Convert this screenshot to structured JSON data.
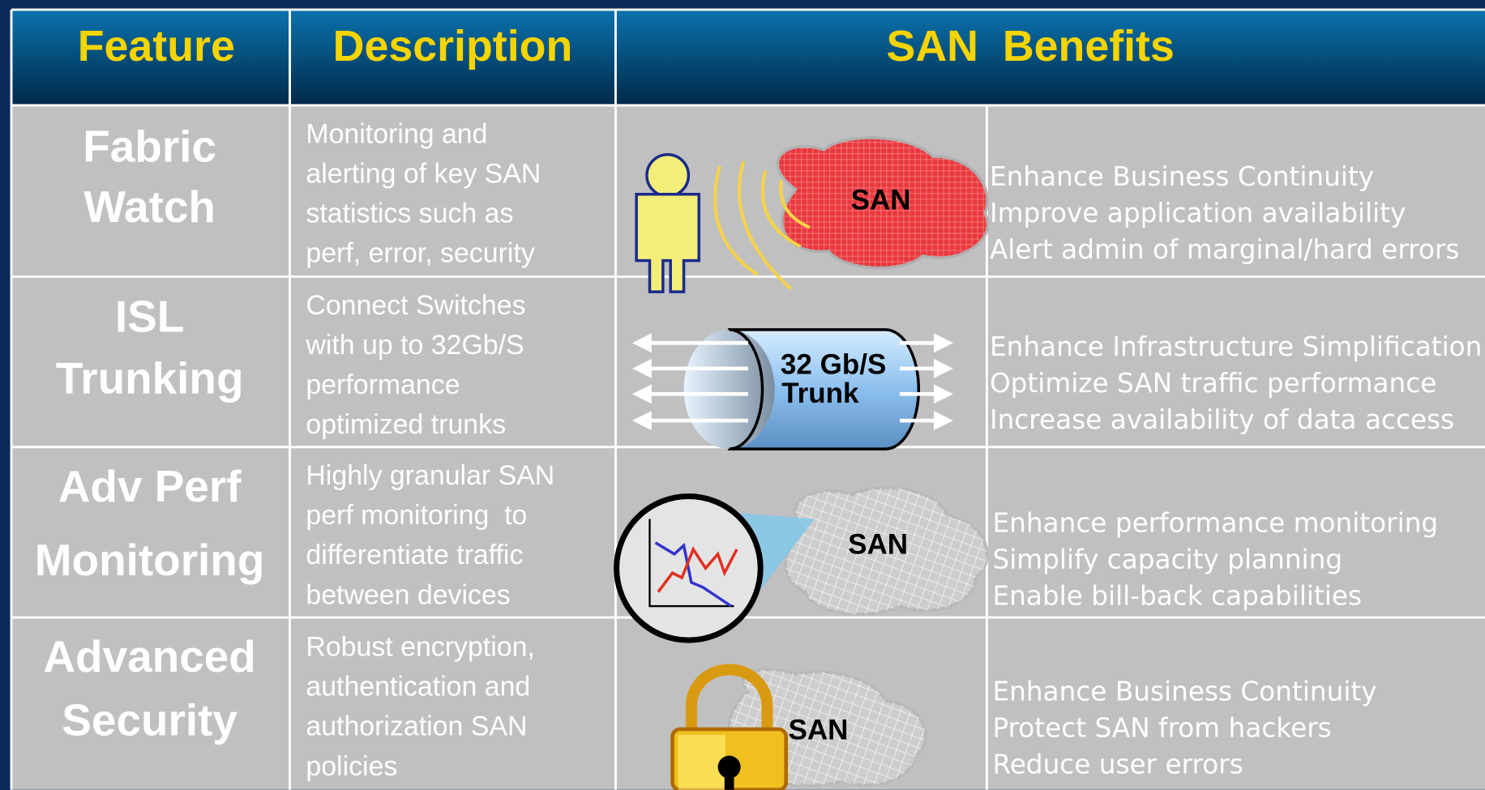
{
  "header": {
    "columns": [
      "Feature",
      "Description",
      "SAN  Benefits"
    ]
  },
  "rows": [
    {
      "feature": [
        "Fabric",
        "Watch"
      ],
      "description": [
        "Monitoring and",
        "alerting of key SAN",
        "statistics such as",
        "perf, error, security"
      ],
      "graphic_label": [
        "SAN"
      ],
      "benefits": [
        "Enhance Business Continuity",
        "Improve application availability",
        "Alert admin of marginal/hard errors"
      ]
    },
    {
      "feature": [
        "ISL",
        "Trunking"
      ],
      "description": [
        "Connect Switches",
        "with up to 32Gb/S",
        "performance",
        "optimized trunks"
      ],
      "graphic_label": [
        "32 Gb/S",
        "Trunk"
      ],
      "benefits": [
        "Enhance Infrastructure Simplification",
        "Optimize SAN traffic performance",
        "Increase availability of data access"
      ]
    },
    {
      "feature": [
        "Adv Perf",
        "Monitoring"
      ],
      "description": [
        "Highly granular SAN",
        "perf monitoring  to",
        "differentiate traffic",
        "between devices"
      ],
      "graphic_label": [
        "SAN"
      ],
      "benefits": [
        "Enhance performance monitoring",
        "Simplify capacity planning",
        "Enable bill-back capabilities"
      ]
    },
    {
      "feature": [
        "Advanced",
        "Security"
      ],
      "description": [
        "Robust encryption,",
        "authentication and",
        "authorization SAN",
        "policies"
      ],
      "graphic_label": [
        "SAN"
      ],
      "benefits": [
        "Enhance Business Continuity",
        "Protect SAN from hackers",
        "Reduce user errors"
      ]
    }
  ]
}
